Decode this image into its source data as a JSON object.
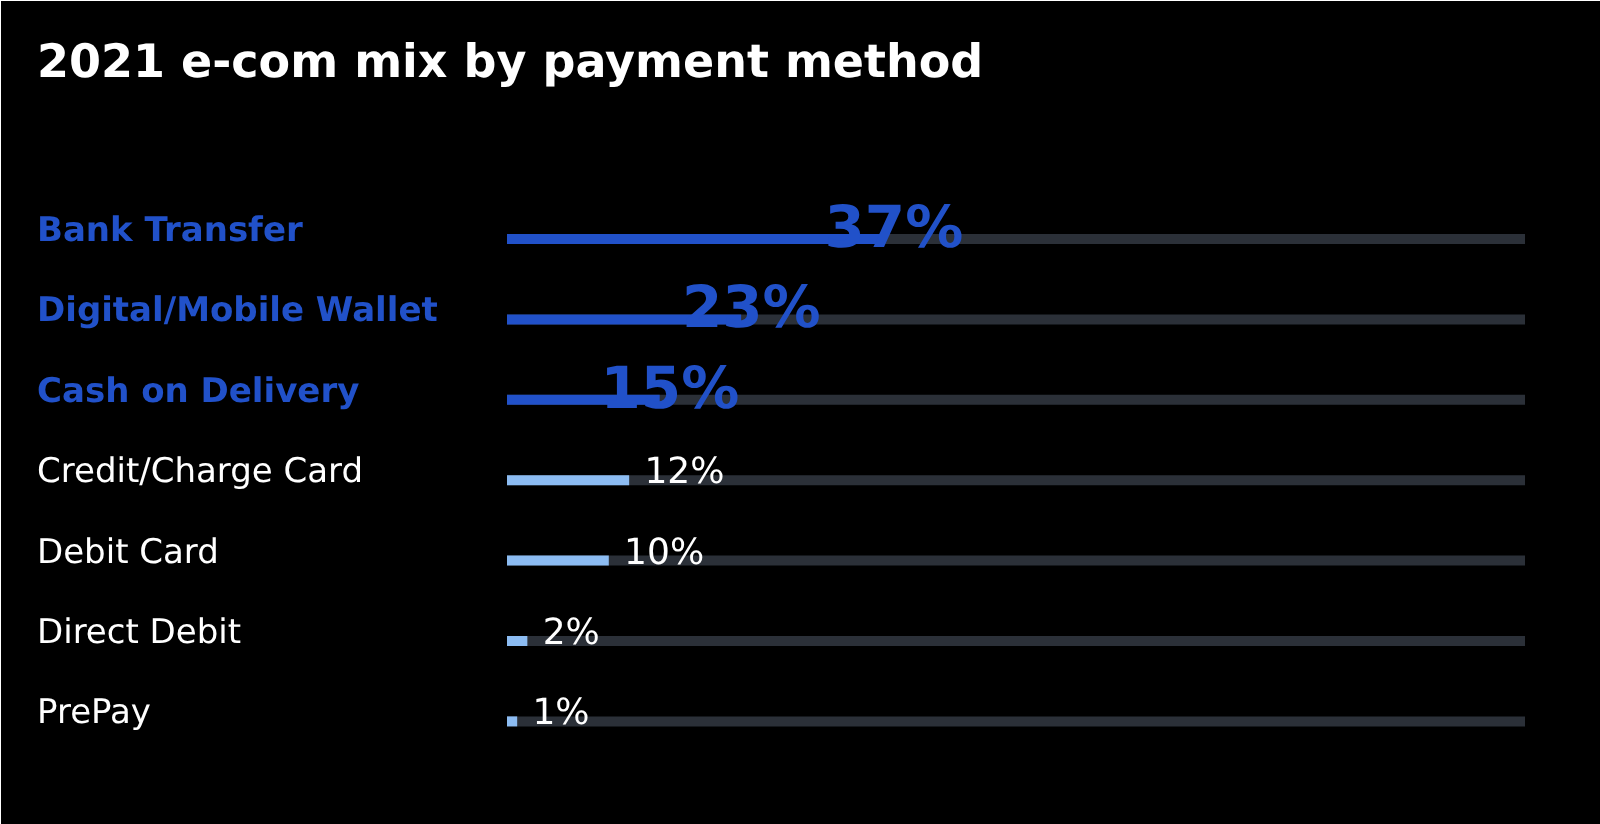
{
  "chart_data": {
    "type": "bar",
    "orientation": "horizontal",
    "title": "2021 e-com mix by payment method",
    "categories": [
      "Bank Transfer",
      "Digital/Mobile Wallet",
      "Cash on Delivery",
      "Credit/Charge Card",
      "Debit Card",
      "Direct Debit",
      "PrePay"
    ],
    "values": [
      37,
      23,
      15,
      12,
      10,
      2,
      1
    ],
    "colors": [
      "#2151c9",
      "#2151c9",
      "#2151c9",
      "#8cbcf2",
      "#8cbcf2",
      "#8cbcf2",
      "#8cbcf2"
    ],
    "value_labels": [
      "37%",
      "23%",
      "15%",
      "12%",
      "10%",
      "2%",
      "1%"
    ],
    "xlim": [
      0,
      100
    ],
    "grid": false
  }
}
